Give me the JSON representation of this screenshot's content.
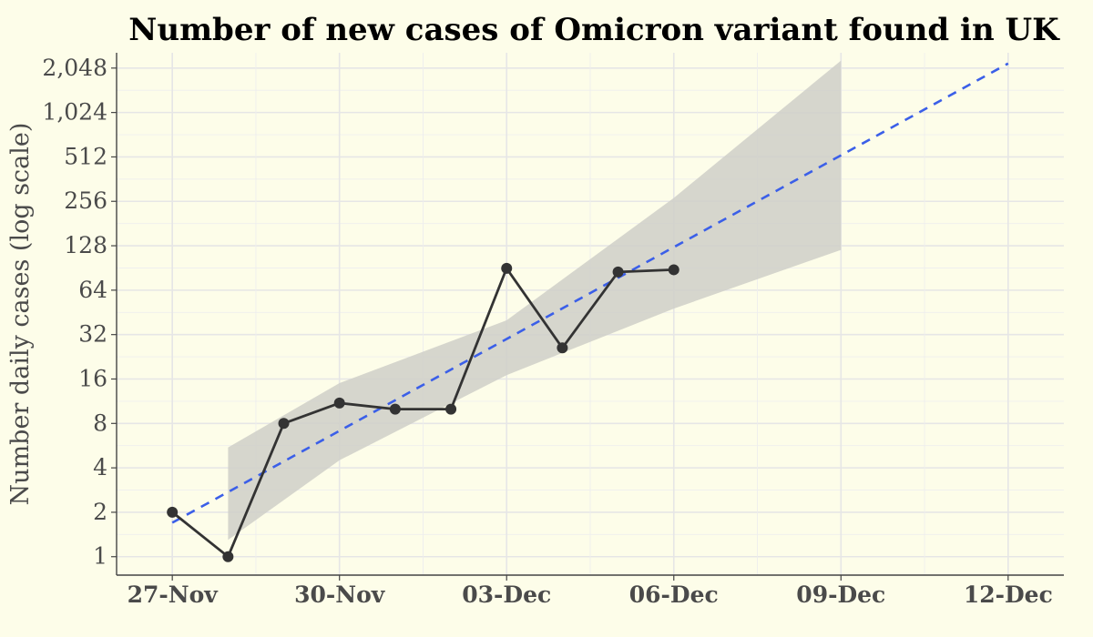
{
  "chart_data": {
    "type": "line",
    "title": "Number of new cases of Omicron variant found in UK",
    "xlabel": "",
    "ylabel": "Number daily cases (log scale)",
    "y_scale": "log2",
    "ylim": [
      0.75,
      2600
    ],
    "xlim": [
      "2021-11-26",
      "2021-12-13"
    ],
    "grid": true,
    "x_ticks": [
      "27-Nov",
      "30-Nov",
      "03-Dec",
      "06-Dec",
      "09-Dec",
      "12-Dec"
    ],
    "y_ticks": [
      "1",
      "2",
      "4",
      "8",
      "16",
      "32",
      "64",
      "128",
      "256",
      "512",
      "1,024",
      "2,048"
    ],
    "series": [
      {
        "x": [
          "2021-11-27",
          "2021-11-28",
          "2021-11-29",
          "2021-11-30",
          "2021-12-01",
          "2021-12-02",
          "2021-12-03",
          "2021-12-04",
          "2021-12-05",
          "2021-12-06"
        ],
        "y": [
          2,
          1,
          8,
          11,
          10,
          10,
          90,
          26,
          85,
          88
        ],
        "color": "#333333"
      }
    ],
    "trend": {
      "x": [
        "2021-11-27",
        "2021-12-12"
      ],
      "y": [
        1.7,
        2200
      ],
      "style": "dashed",
      "color": "#3b5fe8"
    },
    "confidence_band": {
      "x": [
        "2021-11-28",
        "2021-11-30",
        "2021-12-03",
        "2021-12-06",
        "2021-12-09"
      ],
      "lower": [
        1.3,
        4.5,
        17,
        48,
        120
      ],
      "upper": [
        5.5,
        15,
        40,
        270,
        2300
      ],
      "color": "#cfcfc8"
    },
    "colors": {
      "background": "#fdfde9",
      "line": "#333333",
      "trend": "#3b5fe8",
      "band": "#cfcfc8"
    }
  }
}
